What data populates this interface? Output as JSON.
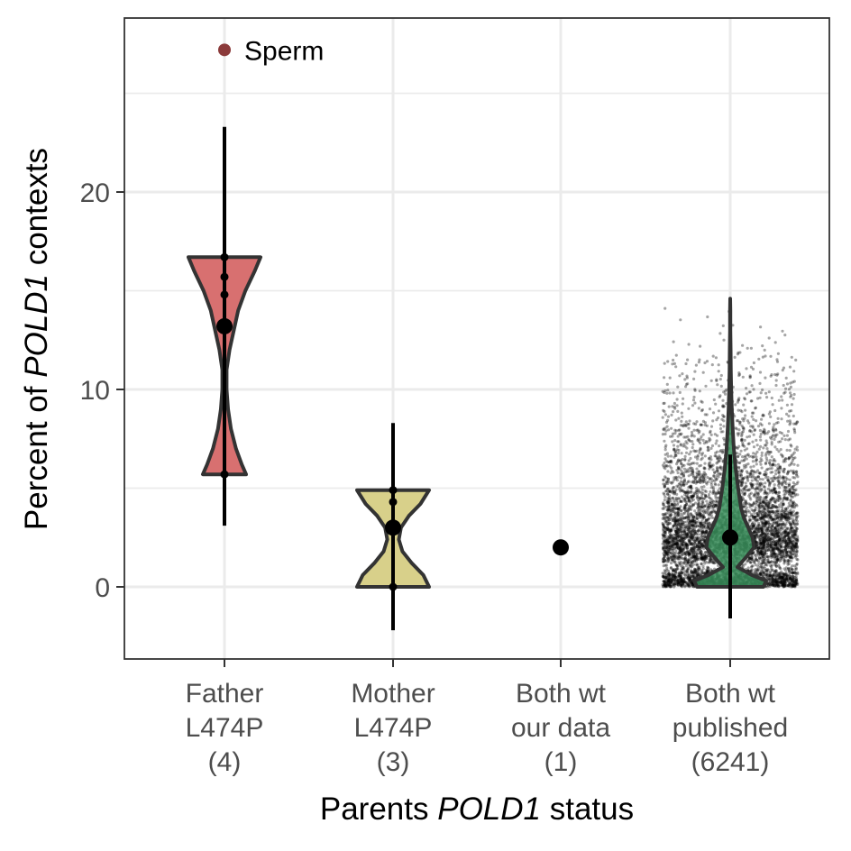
{
  "chart_data": {
    "type": "violin",
    "ylabel": {
      "pre": "Percent of ",
      "italic": "POLD1",
      "post": " contexts"
    },
    "xlabel": {
      "pre": "Parents ",
      "italic": "POLD1",
      "post": " status"
    },
    "ylim": [
      -3.7,
      28.5
    ],
    "yticks": [
      0,
      10,
      20
    ],
    "yticks_minor": [
      5,
      15,
      25
    ],
    "legend": {
      "label": "Sperm",
      "color": "#8B3A3A",
      "position": "top-left",
      "value": 27.2
    },
    "categories": [
      {
        "lines": [
          "Father",
          "L474P",
          "(4)"
        ],
        "fill": "#d87070",
        "violin": [
          [
            5.7,
            0.3
          ],
          [
            6.2,
            0.24
          ],
          [
            7.0,
            0.16
          ],
          [
            8.0,
            0.09
          ],
          [
            9.0,
            0.05
          ],
          [
            10.0,
            0.03
          ],
          [
            11.0,
            0.03
          ],
          [
            12.0,
            0.07
          ],
          [
            13.0,
            0.13
          ],
          [
            14.0,
            0.19
          ],
          [
            15.0,
            0.29
          ],
          [
            16.0,
            0.42
          ],
          [
            16.7,
            0.5
          ]
        ],
        "violin_range": [
          5.7,
          16.7
        ],
        "points": [
          5.7,
          14.8,
          15.7,
          16.7
        ],
        "mean": 13.2,
        "ci": [
          3.1,
          23.3
        ]
      },
      {
        "lines": [
          "Mother",
          "L474P",
          "(3)"
        ],
        "fill": "#d8d08a",
        "violin": [
          [
            0,
            0.5
          ],
          [
            0.6,
            0.42
          ],
          [
            1.2,
            0.26
          ],
          [
            1.8,
            0.13
          ],
          [
            2.4,
            0.08
          ],
          [
            3.0,
            0.11
          ],
          [
            3.6,
            0.22
          ],
          [
            4.2,
            0.38
          ],
          [
            4.9,
            0.5
          ]
        ],
        "violin_range": [
          0,
          4.9
        ],
        "points": [
          0.0,
          4.3,
          4.9
        ],
        "mean": 3.0,
        "ci": [
          -2.2,
          8.3
        ]
      },
      {
        "lines": [
          "Both wt",
          "our data",
          "(1)"
        ],
        "fill": "#ffffff",
        "violin": [],
        "violin_range": [],
        "points": [],
        "mean": 2.0,
        "ci": []
      },
      {
        "lines": [
          "Both wt",
          "published",
          "(6241)"
        ],
        "fill": "#3a8f5c",
        "violin": [
          [
            0,
            0.46
          ],
          [
            0.3,
            0.5
          ],
          [
            0.6,
            0.3
          ],
          [
            1.0,
            0.1
          ],
          [
            1.5,
            0.22
          ],
          [
            2.0,
            0.33
          ],
          [
            2.5,
            0.31
          ],
          [
            3.0,
            0.25
          ],
          [
            3.5,
            0.19
          ],
          [
            4.0,
            0.15
          ],
          [
            5.0,
            0.11
          ],
          [
            6.0,
            0.075
          ],
          [
            7.0,
            0.05
          ],
          [
            8.0,
            0.035
          ],
          [
            9.0,
            0.022
          ],
          [
            10.0,
            0.014
          ],
          [
            11.0,
            0.009
          ],
          [
            12.0,
            0.006
          ],
          [
            13.0,
            0.003
          ],
          [
            14.0,
            0.002
          ],
          [
            14.6,
            0.0
          ]
        ],
        "violin_range": [
          0,
          14.6
        ],
        "points": [],
        "jitter_n": 6241,
        "mean": 2.5,
        "ci": [
          -1.6,
          6.7
        ]
      }
    ]
  }
}
